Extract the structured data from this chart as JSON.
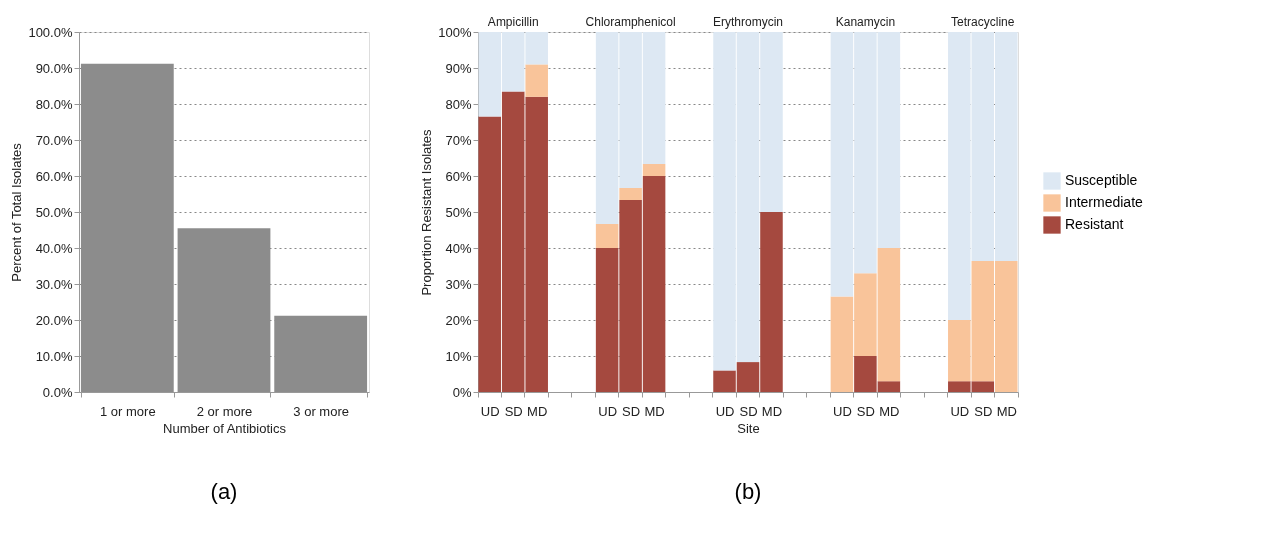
{
  "chart_data": [
    {
      "type": "bar",
      "categories": [
        "1 or more",
        "2 or more",
        "3 or more"
      ],
      "values": [
        91.2,
        45.5,
        21.2
      ],
      "color": "#8c8c8c",
      "xlabel": "Number of Antibiotics",
      "ylabel": "Percent of Total Isolates",
      "ylim": [
        0,
        100
      ],
      "yticks": [
        {
          "value": 0,
          "label": "0.0%"
        },
        {
          "value": 10,
          "label": "10.0%"
        },
        {
          "value": 20,
          "label": "20.0%"
        },
        {
          "value": 30,
          "label": "30.0%"
        },
        {
          "value": 40,
          "label": "40.0%"
        },
        {
          "value": 50,
          "label": "50.0%"
        },
        {
          "value": 60,
          "label": "60.0%"
        },
        {
          "value": 70,
          "label": "70.0%"
        },
        {
          "value": 80,
          "label": "80.0%"
        },
        {
          "value": 90,
          "label": "90.0%"
        },
        {
          "value": 100,
          "label": "100.0%"
        }
      ],
      "grid": "y",
      "annotations": [
        "(a)"
      ]
    },
    {
      "type": "bar",
      "stacked": true,
      "categories": [
        "UD",
        "SD",
        "MD",
        null,
        null,
        "UD",
        "SD",
        "MD",
        null,
        null,
        "UD",
        "SD",
        "MD",
        null,
        null,
        "UD",
        "SD",
        "MD",
        null,
        null,
        "UD",
        "SD",
        "MD"
      ],
      "series": [
        {
          "name": "Resistant",
          "color": "#a5493f",
          "values": [
            76.5,
            83.5,
            82,
            null,
            null,
            40,
            53.3,
            60,
            null,
            null,
            6,
            8.3,
            50,
            null,
            null,
            0,
            10,
            3,
            null,
            null,
            3,
            3,
            0
          ]
        },
        {
          "name": "Intermediate",
          "color": "#f9c49a",
          "values": [
            0,
            0,
            9,
            null,
            null,
            6.7,
            3.4,
            3.3,
            null,
            null,
            0,
            0,
            0,
            null,
            null,
            26.5,
            23,
            37,
            null,
            null,
            17,
            33.4,
            36.4
          ]
        },
        {
          "name": "Susceptible",
          "color": "#dde8f3",
          "values": [
            23.5,
            16.5,
            9,
            null,
            null,
            53.3,
            43.3,
            36.7,
            null,
            null,
            94,
            91.7,
            50,
            null,
            null,
            73.5,
            67,
            60,
            null,
            null,
            80,
            63.6,
            63.6
          ]
        }
      ],
      "xlabel": "Site",
      "ylabel": "Proportion Resistant Isolates",
      "ylim": [
        0,
        100
      ],
      "yticks": [
        {
          "value": 0,
          "label": "0%"
        },
        {
          "value": 10,
          "label": "10%"
        },
        {
          "value": 20,
          "label": "20%"
        },
        {
          "value": 30,
          "label": "30%"
        },
        {
          "value": 40,
          "label": "40%"
        },
        {
          "value": 50,
          "label": "50%"
        },
        {
          "value": 60,
          "label": "60%"
        },
        {
          "value": 70,
          "label": "70%"
        },
        {
          "value": 80,
          "label": "80%"
        },
        {
          "value": 90,
          "label": "90%"
        },
        {
          "value": 100,
          "label": "100%"
        }
      ],
      "grid": "y",
      "legend": "right",
      "annotations": [
        "Ampicillin",
        "Chloramphenicol",
        "Erythromycin",
        "Kanamycin",
        "Tetracycline",
        "(b)"
      ]
    }
  ]
}
